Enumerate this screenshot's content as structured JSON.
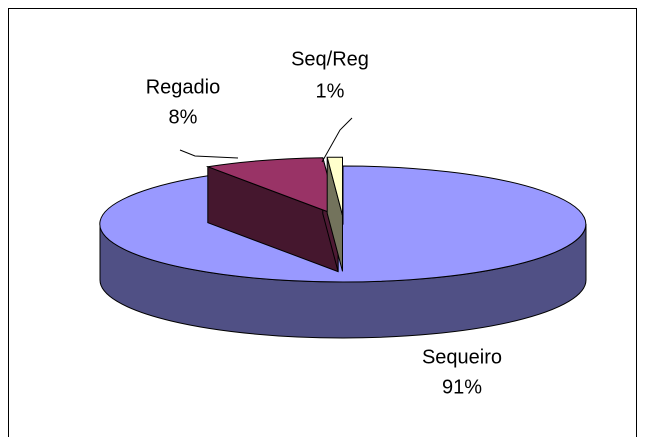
{
  "chart_data": {
    "type": "pie",
    "categories": [
      "Sequeiro",
      "Regadio",
      "Seq/Reg"
    ],
    "values": [
      91,
      8,
      1
    ],
    "value_labels": [
      "91%",
      "8%",
      "1%"
    ],
    "colors": [
      "#9999ff",
      "#993366",
      "#ffffcc"
    ]
  }
}
